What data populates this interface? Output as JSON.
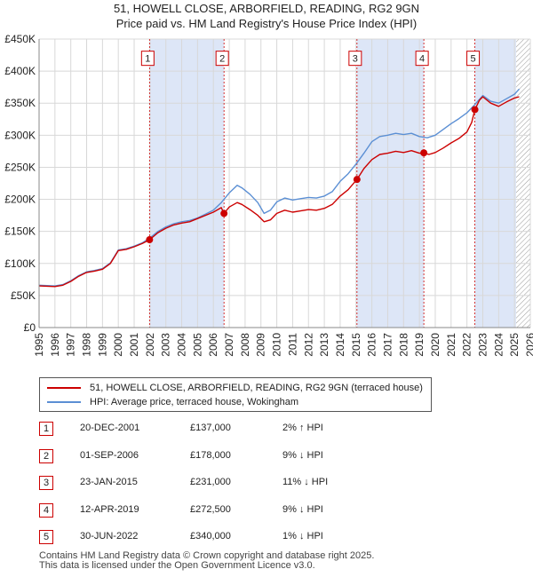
{
  "title_line1": "51, HOWELL CLOSE, ARBORFIELD, READING, RG2 9GN",
  "title_line2": "Price paid vs. HM Land Registry's House Price Index (HPI)",
  "chart_data": {
    "type": "line",
    "title": "51, HOWELL CLOSE, ARBORFIELD, READING, RG2 9GN",
    "subtitle": "Price paid vs. HM Land Registry's House Price Index (HPI)",
    "xlabel": "",
    "ylabel": "",
    "xlim": [
      1995,
      2026
    ],
    "ylim": [
      0,
      450000
    ],
    "y_ticks": [
      0,
      50000,
      100000,
      150000,
      200000,
      250000,
      300000,
      350000,
      400000,
      450000
    ],
    "y_tick_labels": [
      "£0",
      "£50K",
      "£100K",
      "£150K",
      "£200K",
      "£250K",
      "£300K",
      "£350K",
      "£400K",
      "£450K"
    ],
    "x_ticks": [
      1995,
      1996,
      1997,
      1998,
      1999,
      2000,
      2001,
      2002,
      2003,
      2004,
      2005,
      2006,
      2007,
      2008,
      2009,
      2010,
      2011,
      2012,
      2013,
      2014,
      2015,
      2016,
      2017,
      2018,
      2019,
      2020,
      2021,
      2022,
      2023,
      2024,
      2025,
      2026
    ],
    "grid": true,
    "legend_position": "bottom",
    "colors": {
      "price": "#cc0000",
      "hpi": "#5b8fd4",
      "shade": "#dde6f7",
      "marker": "#cc0000"
    },
    "shaded_periods": [
      {
        "from": 2001.97,
        "to": 2006.67
      },
      {
        "from": 2015.06,
        "to": 2019.28
      },
      {
        "from": 2022.5,
        "to": 2025.1
      }
    ],
    "hatched_from": 2025.1,
    "series": [
      {
        "name": "51, HOWELL CLOSE, ARBORFIELD, READING, RG2 9GN (terraced house)",
        "color": "#cc0000",
        "x": [
          1995.0,
          1995.5,
          1996.0,
          1996.5,
          1997.0,
          1997.5,
          1998.0,
          1998.5,
          1999.0,
          1999.5,
          2000.0,
          2000.5,
          2001.0,
          2001.5,
          2001.97,
          2002.5,
          2003.0,
          2003.5,
          2004.0,
          2004.5,
          2005.0,
          2005.5,
          2006.0,
          2006.5,
          2006.67,
          2007.0,
          2007.5,
          2007.8,
          2008.3,
          2008.8,
          2009.2,
          2009.6,
          2010.0,
          2010.5,
          2011.0,
          2011.5,
          2012.0,
          2012.5,
          2013.0,
          2013.5,
          2014.0,
          2014.5,
          2015.06,
          2015.5,
          2016.0,
          2016.5,
          2017.0,
          2017.5,
          2018.0,
          2018.5,
          2019.0,
          2019.28,
          2019.6,
          2020.0,
          2020.5,
          2021.0,
          2021.5,
          2022.0,
          2022.3,
          2022.5,
          2022.8,
          2023.0,
          2023.5,
          2024.0,
          2024.5,
          2025.0,
          2025.3
        ],
        "y": [
          65000,
          64500,
          64000,
          66000,
          72000,
          80000,
          86000,
          88000,
          91000,
          100000,
          120000,
          122000,
          126000,
          131000,
          137000,
          148000,
          155000,
          160000,
          163000,
          165000,
          170000,
          175000,
          180000,
          187000,
          178000,
          188000,
          195000,
          192000,
          184000,
          175000,
          165000,
          168000,
          178000,
          183000,
          180000,
          182000,
          184000,
          183000,
          186000,
          192000,
          205000,
          215000,
          231000,
          248000,
          262000,
          270000,
          272000,
          275000,
          273000,
          276000,
          272000,
          272500,
          270000,
          273000,
          280000,
          288000,
          295000,
          305000,
          320000,
          340000,
          355000,
          360000,
          350000,
          345000,
          352000,
          358000,
          360000
        ]
      },
      {
        "name": "HPI: Average price, terraced house, Wokingham",
        "color": "#5b8fd4",
        "x": [
          1995.0,
          1995.5,
          1996.0,
          1996.5,
          1997.0,
          1997.5,
          1998.0,
          1998.5,
          1999.0,
          1999.5,
          2000.0,
          2000.5,
          2001.0,
          2001.5,
          2002.0,
          2002.5,
          2003.0,
          2003.5,
          2004.0,
          2004.5,
          2005.0,
          2005.5,
          2006.0,
          2006.5,
          2007.0,
          2007.5,
          2007.8,
          2008.3,
          2008.8,
          2009.2,
          2009.6,
          2010.0,
          2010.5,
          2011.0,
          2011.5,
          2012.0,
          2012.5,
          2013.0,
          2013.5,
          2014.0,
          2014.5,
          2015.0,
          2015.5,
          2016.0,
          2016.5,
          2017.0,
          2017.5,
          2018.0,
          2018.5,
          2019.0,
          2019.5,
          2020.0,
          2020.5,
          2021.0,
          2021.5,
          2022.0,
          2022.5,
          2023.0,
          2023.5,
          2024.0,
          2024.5,
          2025.0,
          2025.3
        ],
        "y": [
          66000,
          65500,
          65000,
          67000,
          73000,
          81000,
          87000,
          89000,
          92000,
          101000,
          121000,
          123000,
          127000,
          132000,
          140000,
          150000,
          157000,
          162000,
          165000,
          167000,
          171000,
          177000,
          183000,
          195000,
          210000,
          222000,
          218000,
          208000,
          195000,
          178000,
          183000,
          196000,
          202000,
          199000,
          201000,
          203000,
          202000,
          205000,
          212000,
          228000,
          240000,
          255000,
          272000,
          290000,
          298000,
          300000,
          303000,
          301000,
          303000,
          298000,
          296000,
          300000,
          309000,
          318000,
          326000,
          335000,
          348000,
          362000,
          353000,
          350000,
          357000,
          364000,
          372000
        ]
      }
    ],
    "sale_markers": [
      {
        "num": "1",
        "x": 2001.97,
        "y": 137000,
        "label_y": 420000
      },
      {
        "num": "2",
        "x": 2006.67,
        "y": 178000,
        "label_y": 420000
      },
      {
        "num": "3",
        "x": 2015.06,
        "y": 231000,
        "label_y": 420000
      },
      {
        "num": "4",
        "x": 2019.28,
        "y": 272500,
        "label_y": 420000
      },
      {
        "num": "5",
        "x": 2022.5,
        "y": 340000,
        "label_y": 420000
      }
    ]
  },
  "legend": {
    "price_label": "51, HOWELL CLOSE, ARBORFIELD, READING, RG2 9GN (terraced house)",
    "hpi_label": "HPI: Average price, terraced house, Wokingham"
  },
  "sales": [
    {
      "num": "1",
      "date": "20-DEC-2001",
      "price": "£137,000",
      "hpi": "2% ↑ HPI"
    },
    {
      "num": "2",
      "date": "01-SEP-2006",
      "price": "£178,000",
      "hpi": "9% ↓ HPI"
    },
    {
      "num": "3",
      "date": "23-JAN-2015",
      "price": "£231,000",
      "hpi": "11% ↓ HPI"
    },
    {
      "num": "4",
      "date": "12-APR-2019",
      "price": "£272,500",
      "hpi": "9% ↓ HPI"
    },
    {
      "num": "5",
      "date": "30-JUN-2022",
      "price": "£340,000",
      "hpi": "1% ↓ HPI"
    }
  ],
  "footer": {
    "line1": "Contains HM Land Registry data © Crown copyright and database right 2025.",
    "line2": "This data is licensed under the Open Government Licence v3.0."
  }
}
